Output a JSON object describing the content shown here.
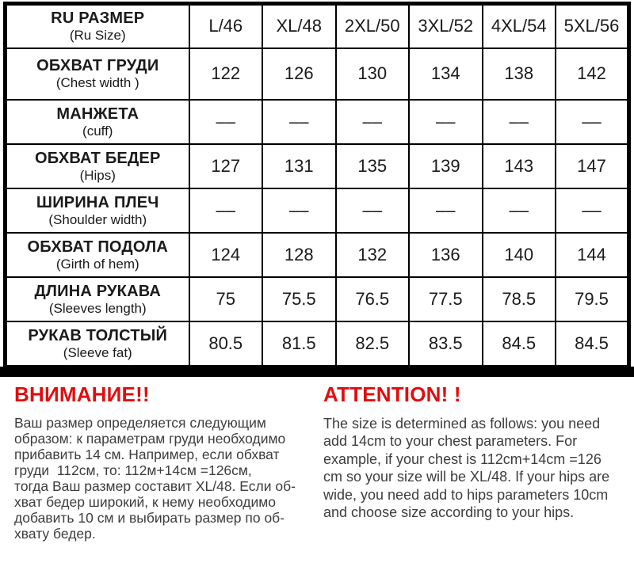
{
  "colors": {
    "accent-red": "#e00e0e",
    "table-border": "#000000",
    "table-text": "#1a1a1a",
    "note-text": "#3d3d3d"
  },
  "chart_data": {
    "type": "table",
    "rows": [
      {
        "label": "RU РАЗМЕР",
        "sublabel": "(Ru Size)",
        "values": [
          "L/46",
          "XL/48",
          "2XL/50",
          "3XL/52",
          "4XL/54",
          "5XL/56"
        ]
      },
      {
        "label": "ОБХВАТ ГРУДИ",
        "sublabel": "(Chest width )",
        "values": [
          "122",
          "126",
          "130",
          "134",
          "138",
          "142"
        ]
      },
      {
        "label": "МАНЖЕТА",
        "sublabel": "(cuff)",
        "values": [
          "––",
          "––",
          "––",
          "––",
          "––",
          "––"
        ]
      },
      {
        "label": "ОБХВАТ БЕДЕР",
        "sublabel": "(Hips)",
        "values": [
          "127",
          "131",
          "135",
          "139",
          "143",
          "147"
        ]
      },
      {
        "label": "ШИРИНА ПЛЕЧ",
        "sublabel": "(Shoulder width)",
        "values": [
          "––",
          "––",
          "––",
          "––",
          "––",
          "––"
        ]
      },
      {
        "label": "ОБХВАТ ПОДОЛА",
        "sublabel": "(Girth of hem)",
        "values": [
          "124",
          "128",
          "132",
          "136",
          "140",
          "144"
        ]
      },
      {
        "label": "ДЛИНА РУКАВА",
        "sublabel": "(Sleeves length)",
        "values": [
          "75",
          "75.5",
          "76.5",
          "77.5",
          "78.5",
          "79.5"
        ]
      },
      {
        "label": "РУКАВ ТОЛСТЫЙ",
        "sublabel": "(Sleeve fat)",
        "values": [
          "80.5",
          "81.5",
          "82.5",
          "83.5",
          "84.5",
          "84.5"
        ]
      }
    ]
  },
  "notes": {
    "ru": {
      "heading": "ВНИМАНИЕ!!",
      "lines": [
        "Ваш размер определяется следующим",
        "образом: к параметрам груди необходимо",
        "прибавить 14 см. Например, если обхват",
        "груди  112см, то: 112м+14см =126см,",
        "тогда Ваш размер составит XL/48. Если об-",
        "хват бедер широкий, к нему необходимо",
        "добавить 10 см и выбирать размер по об-",
        "хвату бедер."
      ]
    },
    "en": {
      "heading": "ATTENTION! !",
      "lines": [
        "The size is determined as follows: you need",
        "add 14cm to your chest parameters. For",
        "example, if your chest is 112cm+14cm =126",
        "cm so your size will be XL/48. If your hips are",
        "wide, you need add to hips parameters 10cm",
        "and choose size according to your hips."
      ]
    }
  }
}
